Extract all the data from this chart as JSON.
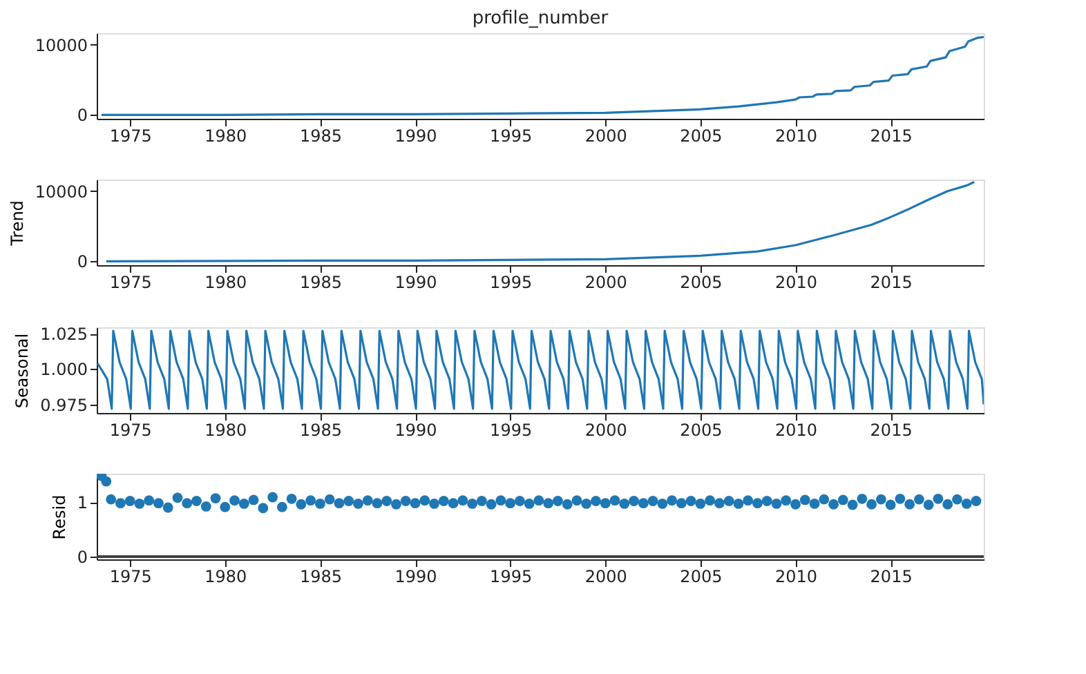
{
  "chart_data": [
    {
      "type": "line",
      "title": "profile_number",
      "color": "#1f77b4",
      "grid": false,
      "x": [
        1973.5,
        1980,
        1985,
        1990,
        1995,
        2000,
        2003,
        2005,
        2007,
        2009,
        2010,
        2010.2,
        2010.9,
        2011.1,
        2011.9,
        2012.1,
        2012.9,
        2013.1,
        2013.9,
        2014.1,
        2014.9,
        2015.1,
        2015.9,
        2016.1,
        2016.9,
        2017.1,
        2017.9,
        2018.1,
        2018.9,
        2019.1,
        2019.6,
        2019.9
      ],
      "values": [
        0,
        0,
        100,
        100,
        200,
        300,
        600,
        800,
        1200,
        1800,
        2200,
        2500,
        2600,
        2900,
        3000,
        3400,
        3500,
        4000,
        4200,
        4700,
        4900,
        5600,
        5800,
        6500,
        6900,
        7700,
        8200,
        9100,
        9700,
        10500,
        11000,
        11100
      ],
      "xlim": [
        1973.25,
        2019.9
      ],
      "xticks": [
        1975,
        1980,
        1985,
        1990,
        1995,
        2000,
        2005,
        2010,
        2015
      ],
      "ylim": [
        -550,
        11650
      ],
      "yticks": [
        0,
        10000
      ]
    },
    {
      "type": "line",
      "ylabel": "Trend",
      "color": "#1f77b4",
      "grid": false,
      "x": [
        1973.75,
        1985,
        1990,
        1995,
        2000,
        2005,
        2008,
        2010,
        2012,
        2014,
        2015,
        2016,
        2017,
        2018,
        2019,
        2019.4
      ],
      "values": [
        0,
        100,
        100,
        200,
        300,
        800,
        1400,
        2300,
        3700,
        5200,
        6300,
        7500,
        8800,
        10000,
        10800,
        11300
      ],
      "xlim": [
        1973.25,
        2019.9
      ],
      "xticks": [
        1975,
        1980,
        1985,
        1990,
        1995,
        2000,
        2005,
        2010,
        2015
      ],
      "ylim": [
        -550,
        11650
      ],
      "yticks": [
        0,
        10000
      ]
    },
    {
      "type": "line",
      "ylabel": "Seasonal",
      "color": "#1f77b4",
      "grid": false,
      "x": [
        1973.3,
        1973.8,
        1974.04,
        1974.12,
        1974.45,
        1974.8,
        1975.04,
        1975.12,
        1975.45,
        1975.8,
        1976.04,
        1976.12,
        1976.45,
        1976.8,
        1977.04,
        1977.12,
        1977.45,
        1977.8,
        1978.04,
        1978.12,
        1978.45,
        1978.8,
        1979.04,
        1979.12,
        1979.45,
        1979.8,
        1980.04,
        1980.12,
        1980.45,
        1980.8,
        1981.04,
        1981.12,
        1981.45,
        1981.8,
        1982.04,
        1982.12,
        1982.45,
        1982.8,
        1983.04,
        1983.12,
        1983.45,
        1983.8,
        1984.04,
        1984.12,
        1984.45,
        1984.8,
        1985.04,
        1985.12,
        1985.45,
        1985.8,
        1986.04,
        1986.12,
        1986.45,
        1986.8,
        1987.04,
        1987.12,
        1987.45,
        1987.8,
        1988.04,
        1988.12,
        1988.45,
        1988.8,
        1989.04,
        1989.12,
        1989.45,
        1989.8,
        1990.04,
        1990.12,
        1990.45,
        1990.8,
        1991.04,
        1991.12,
        1991.45,
        1991.8,
        1992.04,
        1992.12,
        1992.45,
        1992.8,
        1993.04,
        1993.12,
        1993.45,
        1993.8,
        1994.04,
        1994.12,
        1994.45,
        1994.8,
        1995.04,
        1995.12,
        1995.45,
        1995.8,
        1996.04,
        1996.12,
        1996.45,
        1996.8,
        1997.04,
        1997.12,
        1997.45,
        1997.8,
        1998.04,
        1998.12,
        1998.45,
        1998.8,
        1999.04,
        1999.12,
        1999.45,
        1999.8,
        2000.04,
        2000.12,
        2000.45,
        2000.8,
        2001.04,
        2001.12,
        2001.45,
        2001.8,
        2002.04,
        2002.12,
        2002.45,
        2002.8,
        2003.04,
        2003.12,
        2003.45,
        2003.8,
        2004.04,
        2004.12,
        2004.45,
        2004.8,
        2005.04,
        2005.12,
        2005.45,
        2005.8,
        2006.04,
        2006.12,
        2006.45,
        2006.8,
        2007.04,
        2007.12,
        2007.45,
        2007.8,
        2008.04,
        2008.12,
        2008.45,
        2008.8,
        2009.04,
        2009.12,
        2009.45,
        2009.8,
        2010.04,
        2010.12,
        2010.45,
        2010.8,
        2011.04,
        2011.12,
        2011.45,
        2011.8,
        2012.04,
        2012.12,
        2012.45,
        2012.8,
        2013.04,
        2013.12,
        2013.45,
        2013.8,
        2014.04,
        2014.12,
        2014.45,
        2014.8,
        2015.04,
        2015.12,
        2015.45,
        2015.8,
        2016.04,
        2016.12,
        2016.45,
        2016.8,
        2017.04,
        2017.12,
        2017.45,
        2017.8,
        2018.04,
        2018.12,
        2018.45,
        2018.8,
        2019.04,
        2019.12,
        2019.45,
        2019.8,
        2019.9
      ],
      "values": [
        1.004,
        0.993,
        0.972,
        1.027,
        1.005,
        0.993,
        0.972,
        1.027,
        1.005,
        0.993,
        0.972,
        1.027,
        1.005,
        0.993,
        0.972,
        1.027,
        1.005,
        0.993,
        0.972,
        1.027,
        1.005,
        0.993,
        0.972,
        1.027,
        1.005,
        0.993,
        0.972,
        1.027,
        1.005,
        0.993,
        0.972,
        1.027,
        1.005,
        0.993,
        0.972,
        1.027,
        1.005,
        0.993,
        0.972,
        1.027,
        1.005,
        0.993,
        0.972,
        1.027,
        1.005,
        0.993,
        0.972,
        1.027,
        1.005,
        0.993,
        0.972,
        1.027,
        1.005,
        0.993,
        0.972,
        1.027,
        1.005,
        0.993,
        0.972,
        1.027,
        1.005,
        0.993,
        0.972,
        1.027,
        1.005,
        0.993,
        0.972,
        1.027,
        1.005,
        0.993,
        0.972,
        1.027,
        1.005,
        0.993,
        0.972,
        1.027,
        1.005,
        0.993,
        0.972,
        1.027,
        1.005,
        0.993,
        0.972,
        1.027,
        1.005,
        0.993,
        0.972,
        1.027,
        1.005,
        0.993,
        0.972,
        1.027,
        1.005,
        0.993,
        0.972,
        1.027,
        1.005,
        0.993,
        0.972,
        1.027,
        1.005,
        0.993,
        0.972,
        1.027,
        1.005,
        0.993,
        0.972,
        1.027,
        1.005,
        0.993,
        0.972,
        1.027,
        1.005,
        0.993,
        0.972,
        1.027,
        1.005,
        0.993,
        0.972,
        1.027,
        1.005,
        0.993,
        0.972,
        1.027,
        1.005,
        0.993,
        0.972,
        1.027,
        1.005,
        0.993,
        0.972,
        1.027,
        1.005,
        0.993,
        0.972,
        1.027,
        1.005,
        0.993,
        0.972,
        1.027,
        1.005,
        0.993,
        0.972,
        1.027,
        1.005,
        0.993,
        0.972,
        1.027,
        1.005,
        0.993,
        0.972,
        1.027,
        1.005,
        0.993,
        0.972,
        1.027,
        1.005,
        0.993,
        0.972,
        1.027,
        1.005,
        0.993,
        0.972,
        1.027,
        1.005,
        0.993,
        0.972,
        1.027,
        1.005,
        0.993,
        0.972,
        1.027,
        1.005,
        0.993,
        0.972,
        1.027,
        1.005,
        0.993,
        0.972,
        1.027,
        1.005,
        0.993,
        0.972,
        1.027,
        1.005,
        0.993,
        0.975
      ],
      "xlim": [
        1973.25,
        2019.9
      ],
      "xticks": [
        1975,
        1980,
        1985,
        1990,
        1995,
        2000,
        2005,
        2010,
        2015
      ],
      "ylim": [
        0.969,
        1.0295
      ],
      "yticks": [
        0.975,
        {
          "value": 1,
          "label": "1.000"
        },
        1.025
      ]
    },
    {
      "type": "scatter",
      "ylabel": "Resid",
      "color": "#1f77b4",
      "marker": "circle",
      "grid": false,
      "x": [
        1973.5,
        1973.75,
        1974.0,
        1974.5,
        1975.0,
        1975.5,
        1976.0,
        1976.5,
        1977.0,
        1977.5,
        1978.0,
        1978.5,
        1979.0,
        1979.5,
        1980.0,
        1980.5,
        1981.0,
        1981.5,
        1982.0,
        1982.5,
        1983.0,
        1983.5,
        1984.0,
        1984.5,
        1985.0,
        1985.5,
        1986.0,
        1986.5,
        1987.0,
        1987.5,
        1988.0,
        1988.5,
        1989.0,
        1989.5,
        1990.0,
        1990.5,
        1991.0,
        1991.5,
        1992.0,
        1992.5,
        1993.0,
        1993.5,
        1994.0,
        1994.5,
        1995.0,
        1995.5,
        1996.0,
        1996.5,
        1997.0,
        1997.5,
        1998.0,
        1998.5,
        1999.0,
        1999.5,
        2000.0,
        2000.5,
        2001.0,
        2001.5,
        2002.0,
        2002.5,
        2003.0,
        2003.5,
        2004.0,
        2004.5,
        2005.0,
        2005.5,
        2006.0,
        2006.5,
        2007.0,
        2007.5,
        2008.0,
        2008.5,
        2009.0,
        2009.5,
        2010.0,
        2010.5,
        2011.0,
        2011.5,
        2012.0,
        2012.5,
        2013.0,
        2013.5,
        2014.0,
        2014.5,
        2015.0,
        2015.5,
        2016.0,
        2016.5,
        2017.0,
        2017.5,
        2018.0,
        2018.5,
        2019.0,
        2019.5
      ],
      "values": [
        1.48,
        1.38,
        1.05,
        0.98,
        1.02,
        0.97,
        1.03,
        0.98,
        0.9,
        1.08,
        0.98,
        1.02,
        0.92,
        1.07,
        0.91,
        1.03,
        0.97,
        1.04,
        0.89,
        1.09,
        0.91,
        1.06,
        0.96,
        1.03,
        0.97,
        1.05,
        0.98,
        1.02,
        0.97,
        1.03,
        0.98,
        1.02,
        0.96,
        1.02,
        0.98,
        1.03,
        0.97,
        1.02,
        0.98,
        1.03,
        0.97,
        1.02,
        0.96,
        1.03,
        0.98,
        1.02,
        0.97,
        1.03,
        0.98,
        1.02,
        0.96,
        1.03,
        0.97,
        1.02,
        0.98,
        1.03,
        0.97,
        1.02,
        0.98,
        1.02,
        0.97,
        1.03,
        0.98,
        1.02,
        0.97,
        1.03,
        0.98,
        1.02,
        0.97,
        1.03,
        0.98,
        1.02,
        0.97,
        1.03,
        0.96,
        1.04,
        0.97,
        1.05,
        0.96,
        1.04,
        0.95,
        1.06,
        0.96,
        1.05,
        0.95,
        1.06,
        0.96,
        1.05,
        0.95,
        1.06,
        0.96,
        1.05,
        0.97,
        1.02
      ],
      "xlim": [
        1973.25,
        2019.9
      ],
      "xticks": [
        1975,
        1980,
        1985,
        1990,
        1995,
        2000,
        2005,
        2010,
        2015
      ],
      "ylim": [
        -0.05,
        1.52
      ],
      "yticks": [
        0,
        1
      ],
      "ref_lines": [
        {
          "axis": "y",
          "value": 0,
          "color": "#404040"
        }
      ]
    }
  ]
}
